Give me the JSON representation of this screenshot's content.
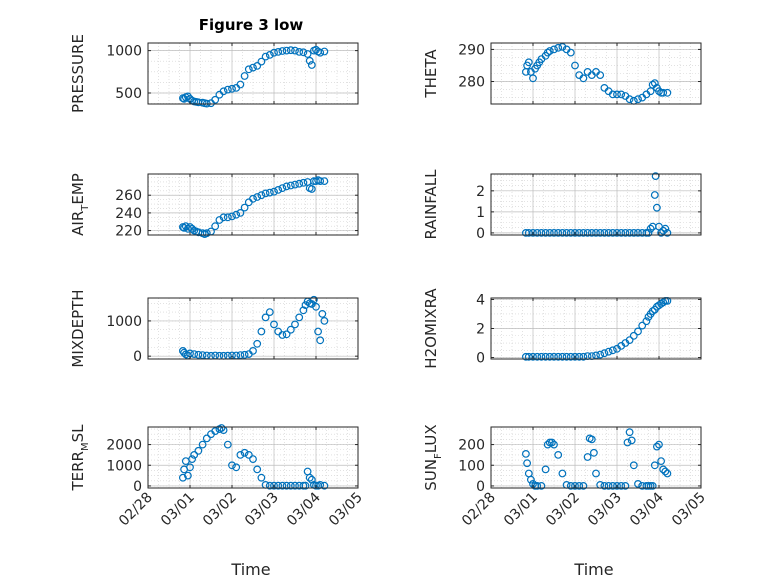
{
  "figure": {
    "title": "Figure 3 low"
  },
  "colors": {
    "marker": "#0072BD",
    "axis": "#262626",
    "grid": "#d0d0d0"
  },
  "chart_data": [
    {
      "id": "pressure",
      "type": "scatter",
      "col": 0,
      "row": 0,
      "title": "Figure 3 low",
      "ylabel": {
        "main": "PRESSURE"
      },
      "ylim": [
        370,
        1090
      ],
      "yticks": [
        500,
        1000
      ],
      "ytick_labels": [
        "500",
        "1000"
      ],
      "x": [
        0.83,
        0.86,
        0.9,
        0.95,
        1.0,
        1.05,
        1.1,
        1.15,
        1.2,
        1.3,
        1.35,
        1.4,
        1.5,
        1.6,
        1.7,
        1.8,
        1.9,
        2.0,
        2.1,
        2.2,
        2.3,
        2.4,
        2.5,
        2.6,
        2.7,
        2.8,
        2.9,
        3.0,
        3.1,
        3.2,
        3.3,
        3.4,
        3.5,
        3.6,
        3.7,
        3.8,
        3.85,
        3.9,
        3.95,
        4.0,
        4.05,
        4.1,
        4.2
      ],
      "y": [
        440,
        430,
        450,
        460,
        430,
        410,
        400,
        395,
        390,
        385,
        380,
        375,
        380,
        420,
        480,
        520,
        540,
        550,
        560,
        600,
        700,
        780,
        800,
        820,
        870,
        930,
        950,
        975,
        985,
        995,
        1000,
        1005,
        1000,
        985,
        980,
        960,
        880,
        830,
        1000,
        1010,
        990,
        975,
        990
      ]
    },
    {
      "id": "theta",
      "type": "scatter",
      "col": 1,
      "row": 0,
      "ylabel": {
        "main": "THETA"
      },
      "ylim": [
        273,
        292
      ],
      "yticks": [
        280,
        290
      ],
      "ytick_labels": [
        "280",
        "290"
      ],
      "x": [
        0.83,
        0.86,
        0.9,
        0.95,
        1.0,
        1.05,
        1.1,
        1.15,
        1.2,
        1.3,
        1.35,
        1.4,
        1.5,
        1.6,
        1.7,
        1.8,
        1.9,
        2.0,
        2.1,
        2.2,
        2.3,
        2.4,
        2.5,
        2.6,
        2.7,
        2.8,
        2.9,
        3.0,
        3.1,
        3.2,
        3.3,
        3.4,
        3.5,
        3.6,
        3.7,
        3.8,
        3.85,
        3.9,
        3.95,
        4.0,
        4.05,
        4.1,
        4.2
      ],
      "y": [
        283,
        285,
        286,
        283,
        281,
        284,
        285,
        286,
        287,
        288,
        289,
        289.5,
        290,
        290.5,
        290.8,
        290,
        289,
        285,
        282,
        281,
        283,
        282,
        283,
        282,
        278,
        277,
        276,
        276,
        276,
        275.5,
        274.5,
        274,
        274.5,
        275,
        276,
        277,
        279,
        279.5,
        278,
        277,
        276.5,
        276.5,
        276.5
      ]
    },
    {
      "id": "air_temp",
      "type": "scatter",
      "col": 0,
      "row": 1,
      "ylabel": {
        "main": "AIR",
        "sub": "T",
        "rest": "EMP"
      },
      "ylim": [
        215,
        284
      ],
      "yticks": [
        220,
        240,
        260
      ],
      "ytick_labels": [
        "220",
        "240",
        "260"
      ],
      "x": [
        0.83,
        0.86,
        0.9,
        0.95,
        1.0,
        1.05,
        1.1,
        1.15,
        1.2,
        1.3,
        1.35,
        1.4,
        1.5,
        1.6,
        1.7,
        1.8,
        1.9,
        2.0,
        2.1,
        2.2,
        2.3,
        2.4,
        2.5,
        2.6,
        2.7,
        2.8,
        2.9,
        3.0,
        3.1,
        3.2,
        3.3,
        3.4,
        3.5,
        3.6,
        3.7,
        3.8,
        3.85,
        3.9,
        3.95,
        4.0,
        4.05,
        4.1,
        4.2
      ],
      "y": [
        224,
        223,
        225,
        222,
        224,
        222,
        220,
        219,
        218,
        217,
        216,
        217,
        219,
        225,
        232,
        235,
        235,
        236,
        238,
        240,
        246,
        252,
        256,
        258,
        260,
        262,
        263,
        264,
        266,
        268,
        270,
        271,
        272,
        273,
        274,
        275,
        268,
        267,
        276,
        276,
        277,
        276,
        276
      ]
    },
    {
      "id": "rainfall",
      "type": "scatter",
      "col": 1,
      "row": 1,
      "ylabel": {
        "main": "RAINFALL"
      },
      "ylim": [
        -0.1,
        2.8
      ],
      "yticks": [
        0,
        1,
        2
      ],
      "ytick_labels": [
        "0",
        "1",
        "2"
      ],
      "x": [
        0.83,
        0.9,
        1.0,
        1.1,
        1.2,
        1.3,
        1.4,
        1.5,
        1.6,
        1.7,
        1.8,
        1.9,
        2.0,
        2.1,
        2.2,
        2.3,
        2.4,
        2.5,
        2.6,
        2.7,
        2.8,
        2.9,
        3.0,
        3.1,
        3.2,
        3.3,
        3.4,
        3.5,
        3.6,
        3.7,
        3.75,
        3.8,
        3.85,
        3.9,
        3.92,
        3.95,
        4.0,
        4.05,
        4.1,
        4.15,
        4.2
      ],
      "y": [
        0,
        0,
        0,
        0,
        0,
        0,
        0,
        0,
        0,
        0,
        0,
        0,
        0,
        0,
        0,
        0,
        0,
        0,
        0,
        0,
        0,
        0,
        0,
        0,
        0,
        0,
        0,
        0,
        0,
        0,
        0,
        0.2,
        0.3,
        1.8,
        2.7,
        1.2,
        0.3,
        0,
        0.1,
        0.2,
        0
      ]
    },
    {
      "id": "mixdepth",
      "type": "scatter",
      "col": 0,
      "row": 2,
      "ylabel": {
        "main": "MIXDEPTH"
      },
      "ylim": [
        -80,
        1650
      ],
      "yticks": [
        0,
        1000
      ],
      "ytick_labels": [
        "0",
        "1000"
      ],
      "x": [
        0.83,
        0.86,
        0.9,
        0.95,
        1.0,
        1.1,
        1.2,
        1.3,
        1.4,
        1.5,
        1.6,
        1.7,
        1.8,
        1.9,
        2.0,
        2.1,
        2.2,
        2.3,
        2.4,
        2.5,
        2.6,
        2.7,
        2.8,
        2.9,
        3.0,
        3.1,
        3.2,
        3.3,
        3.4,
        3.5,
        3.6,
        3.7,
        3.75,
        3.8,
        3.85,
        3.9,
        3.95,
        4.0,
        4.05,
        4.1,
        4.15,
        4.2
      ],
      "y": [
        150,
        100,
        50,
        20,
        80,
        60,
        40,
        30,
        20,
        10,
        20,
        10,
        10,
        15,
        20,
        20,
        30,
        40,
        60,
        150,
        350,
        700,
        1100,
        1250,
        900,
        700,
        600,
        620,
        750,
        900,
        1100,
        1300,
        1450,
        1550,
        1500,
        1480,
        1600,
        1400,
        700,
        450,
        1200,
        1000
      ]
    },
    {
      "id": "h2omixra",
      "type": "scatter",
      "col": 1,
      "row": 2,
      "ylabel": {
        "main": "H2OMIXRA"
      },
      "ylim": [
        -0.1,
        4.1
      ],
      "yticks": [
        0,
        2,
        4
      ],
      "ytick_labels": [
        "0",
        "2",
        "4"
      ],
      "x": [
        0.83,
        0.9,
        1.0,
        1.1,
        1.2,
        1.3,
        1.4,
        1.5,
        1.6,
        1.7,
        1.8,
        1.9,
        2.0,
        2.1,
        2.2,
        2.3,
        2.4,
        2.5,
        2.6,
        2.7,
        2.8,
        2.9,
        3.0,
        3.1,
        3.2,
        3.3,
        3.4,
        3.5,
        3.6,
        3.7,
        3.75,
        3.8,
        3.85,
        3.9,
        3.95,
        4.0,
        4.05,
        4.1,
        4.15,
        4.2
      ],
      "y": [
        0.05,
        0.05,
        0.05,
        0.05,
        0.05,
        0.05,
        0.05,
        0.05,
        0.05,
        0.05,
        0.05,
        0.05,
        0.05,
        0.05,
        0.05,
        0.1,
        0.1,
        0.15,
        0.2,
        0.3,
        0.4,
        0.5,
        0.6,
        0.8,
        1.0,
        1.2,
        1.5,
        1.8,
        2.2,
        2.5,
        2.8,
        3.0,
        3.2,
        3.3,
        3.5,
        3.6,
        3.7,
        3.8,
        3.9,
        3.9
      ]
    },
    {
      "id": "terr_msl",
      "type": "scatter",
      "col": 0,
      "row": 3,
      "ylabel": {
        "main": "TERR",
        "sub": "M",
        "rest": "SL"
      },
      "ylim": [
        -100,
        2850
      ],
      "yticks": [
        0,
        1000,
        2000
      ],
      "ytick_labels": [
        "0",
        "1000",
        "2000"
      ],
      "x": [
        0.83,
        0.86,
        0.9,
        0.95,
        1.0,
        1.05,
        1.1,
        1.2,
        1.3,
        1.4,
        1.5,
        1.6,
        1.7,
        1.75,
        1.8,
        1.9,
        2.0,
        2.1,
        2.2,
        2.3,
        2.4,
        2.5,
        2.6,
        2.7,
        2.8,
        2.9,
        3.0,
        3.1,
        3.2,
        3.3,
        3.4,
        3.5,
        3.6,
        3.7,
        3.75,
        3.8,
        3.85,
        3.9,
        3.95,
        4.0,
        4.05,
        4.1,
        4.2
      ],
      "y": [
        400,
        800,
        1200,
        500,
        900,
        1300,
        1500,
        1700,
        2000,
        2300,
        2500,
        2650,
        2750,
        2800,
        2700,
        2000,
        1000,
        900,
        1500,
        1600,
        1500,
        1300,
        800,
        400,
        50,
        10,
        10,
        10,
        10,
        10,
        10,
        10,
        10,
        10,
        10,
        700,
        400,
        300,
        50,
        10,
        10,
        50,
        10
      ]
    },
    {
      "id": "sunflux",
      "type": "scatter",
      "col": 1,
      "row": 3,
      "ylabel": {
        "main": "SUN",
        "sub": "F",
        "rest": "LUX"
      },
      "ylim": [
        -10,
        285
      ],
      "yticks": [
        0,
        100,
        200
      ],
      "ytick_labels": [
        "0",
        "100",
        "200"
      ],
      "x": [
        0.83,
        0.86,
        0.9,
        0.95,
        1.0,
        1.05,
        1.1,
        1.2,
        1.3,
        1.35,
        1.4,
        1.45,
        1.5,
        1.6,
        1.7,
        1.8,
        1.9,
        2.0,
        2.1,
        2.2,
        2.3,
        2.35,
        2.4,
        2.45,
        2.5,
        2.6,
        2.7,
        2.8,
        2.9,
        3.0,
        3.1,
        3.2,
        3.25,
        3.3,
        3.35,
        3.4,
        3.5,
        3.6,
        3.7,
        3.75,
        3.8,
        3.85,
        3.9,
        3.95,
        4.0,
        4.05,
        4.1,
        4.15,
        4.2
      ],
      "y": [
        155,
        110,
        60,
        30,
        10,
        0,
        0,
        0,
        80,
        200,
        210,
        210,
        200,
        150,
        60,
        5,
        0,
        0,
        0,
        0,
        140,
        230,
        225,
        160,
        60,
        5,
        0,
        0,
        0,
        0,
        0,
        0,
        210,
        260,
        220,
        100,
        10,
        0,
        0,
        0,
        0,
        0,
        100,
        190,
        200,
        120,
        80,
        70,
        60
      ]
    }
  ],
  "xaxis": {
    "range": [
      0,
      5
    ],
    "ticks": [
      0,
      1,
      2,
      3,
      4,
      5
    ],
    "tick_labels": [
      "02/28",
      "03/01",
      "03/02",
      "03/03",
      "03/04",
      "03/05"
    ],
    "label": "Time"
  }
}
